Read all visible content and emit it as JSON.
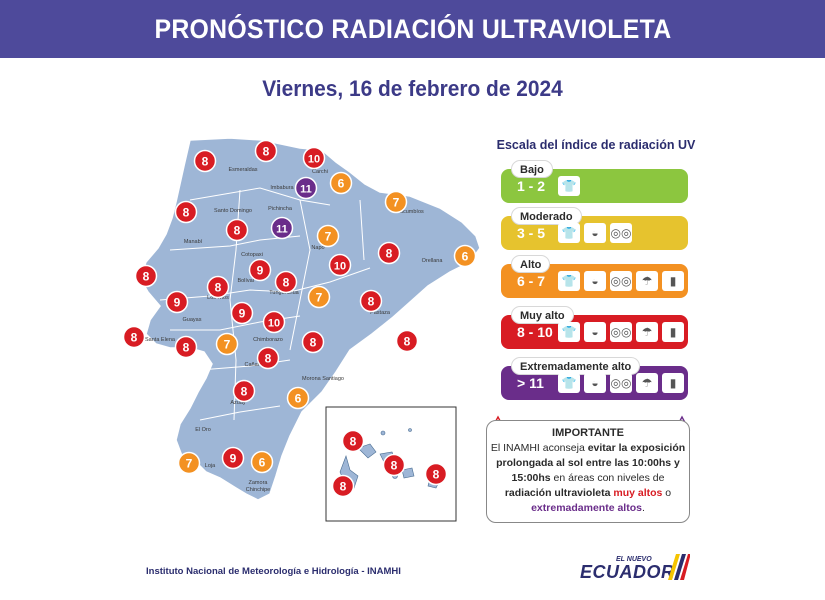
{
  "header": {
    "title": "PRONÓSTICO RADIACIÓN ULTRAVIOLETA"
  },
  "date": "Viernes, 16 de febrero de 2024",
  "colors": {
    "header_bg": "#4e4a9b",
    "map_fill": "#9eb6d6",
    "low": "#8cc63f",
    "moderate": "#e6c32e",
    "high": "#f39122",
    "very_high": "#d81c23",
    "extreme": "#6a2d8a"
  },
  "legend": {
    "title": "Escala del índice de radiación UV",
    "bands": [
      {
        "label": "Bajo",
        "range": "1 - 2",
        "color": "#8cc63f",
        "icons": [
          "shirt-icon"
        ]
      },
      {
        "label": "Moderado",
        "range": "3 - 5",
        "color": "#e6c32e",
        "icons": [
          "shirt-icon",
          "cap-icon",
          "sunglasses-icon"
        ]
      },
      {
        "label": "Alto",
        "range": "6 - 7",
        "color": "#f39122",
        "icons": [
          "shirt-icon",
          "cap-icon",
          "sunglasses-icon",
          "umbrella-icon",
          "sunscreen-icon"
        ]
      },
      {
        "label": "Muy alto",
        "range": "8 - 10",
        "color": "#d81c23",
        "icons": [
          "shirt-icon",
          "cap-icon",
          "sunglasses-icon",
          "umbrella-icon",
          "sunscreen-icon"
        ]
      },
      {
        "label": "Extremadamente alto",
        "range": "> 11",
        "color": "#6a2d8a",
        "icons": [
          "shirt-icon",
          "cap-icon",
          "sunglasses-icon",
          "umbrella-icon",
          "sunscreen-icon"
        ]
      }
    ]
  },
  "important": {
    "title": "IMPORTANTE",
    "line1": "El INAMHI aconseja ",
    "bold1": "evitar la exposición prolongada al sol entre las 10:00hs y 15:00hs",
    "line2": " en áreas con niveles de ",
    "bold2": "radiación ultravioleta ",
    "red": "muy altos",
    "line3": " o ",
    "purple": "extremadamente altos",
    "end": "."
  },
  "provinces": [
    "Esmeraldas",
    "Carchi",
    "Imbabura",
    "Sucumbíos",
    "Pichincha",
    "Santo Domingo",
    "Manabí",
    "Napo",
    "Orellana",
    "Cotopaxi",
    "Bolívar",
    "Tungurahua",
    "Los Ríos",
    "Guayas",
    "Pastaza",
    "Santa Elena",
    "Chimborazo",
    "Cañar",
    "Morona Santiago",
    "Azuay",
    "El Oro",
    "Loja",
    "Zamora Chinchipe"
  ],
  "uv_markers": [
    {
      "value": "8",
      "level": "very_high"
    },
    {
      "value": "8",
      "level": "very_high"
    },
    {
      "value": "10",
      "level": "very_high"
    },
    {
      "value": "11",
      "level": "extreme"
    },
    {
      "value": "6",
      "level": "high"
    },
    {
      "value": "7",
      "level": "high"
    },
    {
      "value": "8",
      "level": "very_high"
    },
    {
      "value": "8",
      "level": "very_high"
    },
    {
      "value": "11",
      "level": "extreme"
    },
    {
      "value": "7",
      "level": "high"
    },
    {
      "value": "8",
      "level": "very_high"
    },
    {
      "value": "6",
      "level": "high"
    },
    {
      "value": "8",
      "level": "very_high"
    },
    {
      "value": "10",
      "level": "very_high"
    },
    {
      "value": "9",
      "level": "very_high"
    },
    {
      "value": "8",
      "level": "very_high"
    },
    {
      "value": "8",
      "level": "very_high"
    },
    {
      "value": "9",
      "level": "very_high"
    },
    {
      "value": "7",
      "level": "high"
    },
    {
      "value": "8",
      "level": "very_high"
    },
    {
      "value": "9",
      "level": "very_high"
    },
    {
      "value": "10",
      "level": "very_high"
    },
    {
      "value": "8",
      "level": "very_high"
    },
    {
      "value": "8",
      "level": "very_high"
    },
    {
      "value": "7",
      "level": "high"
    },
    {
      "value": "8",
      "level": "very_high"
    },
    {
      "value": "8",
      "level": "very_high"
    },
    {
      "value": "8",
      "level": "very_high"
    },
    {
      "value": "6",
      "level": "high"
    },
    {
      "value": "8",
      "level": "very_high"
    },
    {
      "value": "7",
      "level": "high"
    },
    {
      "value": "9",
      "level": "very_high"
    },
    {
      "value": "6",
      "level": "high"
    }
  ],
  "galapagos_markers": [
    {
      "value": "8",
      "level": "very_high"
    },
    {
      "value": "8",
      "level": "very_high"
    },
    {
      "value": "8",
      "level": "very_high"
    },
    {
      "value": "8",
      "level": "very_high"
    }
  ],
  "footer": {
    "institution": "Instituto Nacional de Meteorología e Hidrología - INAMHI",
    "logo_small": "EL NUEVO",
    "logo_main": "ECUADOR"
  }
}
